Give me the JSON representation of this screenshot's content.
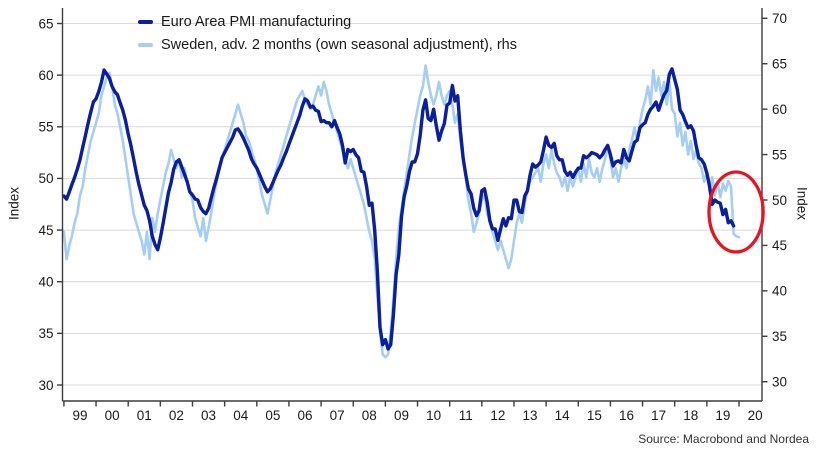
{
  "legend": {
    "items": [
      {
        "label": "Euro Area PMI manufacturing",
        "color": "#0a1f9b"
      },
      {
        "label": "Sweden, adv. 2 months (own seasonal adjustment), rhs",
        "color": "#a6cdf2"
      }
    ]
  },
  "axes": {
    "left_label": "Index",
    "right_label": "Index"
  },
  "source": "Source: Macrobond and Nordea",
  "chart_data": {
    "type": "line",
    "title": "",
    "x_unit": "month",
    "x_start": "1999-01",
    "x_tick_labels": [
      "99",
      "00",
      "01",
      "02",
      "03",
      "04",
      "05",
      "06",
      "07",
      "08",
      "09",
      "10",
      "11",
      "12",
      "13",
      "14",
      "15",
      "16",
      "17",
      "18",
      "19",
      "20"
    ],
    "grid": "horizontal",
    "legend_position": "top-left",
    "left_axis": {
      "label": "Index",
      "min": 30,
      "max": 65,
      "ticks": [
        30,
        35,
        40,
        45,
        50,
        55,
        60,
        65
      ]
    },
    "right_axis": {
      "label": "Index",
      "min": 30,
      "max": 70,
      "ticks": [
        30,
        35,
        40,
        45,
        50,
        55,
        60,
        65,
        70
      ]
    },
    "series": [
      {
        "name": "Sweden, adv. 2 months (own seasonal adjustment), rhs",
        "axis": "right",
        "color": "#a6cdf2",
        "line_width": 2.6,
        "values": [
          46.5,
          43.5,
          45.0,
          46.0,
          47.5,
          48.5,
          50.5,
          51.5,
          53.5,
          55.0,
          56.5,
          57.5,
          58.5,
          59.5,
          61.5,
          62.5,
          63.5,
          64.0,
          62.5,
          60.5,
          59.5,
          58.0,
          56.5,
          54.5,
          52.5,
          50.5,
          48.5,
          47.5,
          46.5,
          45.5,
          44.0,
          46.5,
          43.5,
          48.0,
          46.5,
          48.5,
          50.0,
          51.5,
          53.0,
          54.0,
          55.5,
          54.5,
          53.5,
          54.5,
          52.5,
          53.5,
          52.0,
          51.0,
          50.0,
          48.0,
          47.0,
          46.0,
          48.0,
          45.5,
          47.0,
          48.5,
          50.5,
          52.0,
          53.5,
          54.5,
          55.5,
          56.5,
          57.5,
          58.5,
          59.5,
          60.5,
          59.5,
          58.5,
          57.0,
          56.5,
          55.5,
          54.5,
          53.5,
          52.0,
          50.5,
          49.5,
          48.5,
          50.0,
          51.5,
          53.0,
          54.0,
          55.0,
          56.0,
          57.0,
          58.0,
          59.0,
          60.0,
          61.0,
          61.5,
          62.0,
          61.0,
          60.5,
          60.0,
          60.5,
          61.5,
          62.5,
          61.5,
          63.0,
          62.0,
          60.5,
          59.5,
          58.5,
          57.5,
          56.5,
          55.5,
          54.5,
          53.5,
          54.5,
          53.5,
          52.5,
          51.5,
          50.5,
          49.5,
          48.0,
          46.5,
          45.5,
          43.5,
          39.5,
          35.5,
          33.0,
          32.7,
          33.0,
          35.5,
          39.0,
          43.5,
          47.0,
          49.0,
          51.0,
          53.0,
          55.0,
          57.0,
          58.5,
          60.0,
          61.5,
          62.5,
          64.8,
          63.0,
          61.5,
          60.5,
          61.5,
          63.0,
          61.5,
          60.5,
          61.5,
          62.0,
          60.5,
          58.5,
          59.5,
          56.5,
          54.5,
          52.5,
          50.0,
          48.5,
          46.5,
          47.5,
          48.5,
          50.0,
          50.5,
          48.5,
          47.5,
          46.5,
          45.5,
          44.5,
          45.5,
          44.5,
          43.5,
          42.5,
          43.5,
          45.5,
          47.5,
          48.5,
          47.5,
          49.5,
          51.0,
          52.0,
          52.5,
          53.0,
          53.5,
          52.0,
          54.0,
          55.0,
          53.5,
          55.5,
          54.0,
          53.0,
          52.5,
          51.5,
          52.5,
          51.0,
          52.5,
          51.5,
          52.5,
          53.5,
          52.0,
          54.0,
          52.5,
          54.5,
          53.0,
          52.5,
          53.5,
          52.0,
          53.5,
          54.5,
          56.0,
          54.5,
          52.5,
          53.5,
          52.0,
          53.5,
          54.5,
          53.5,
          55.5,
          56.5,
          58.0,
          56.5,
          58.5,
          60.0,
          61.0,
          62.5,
          60.5,
          64.3,
          62.0,
          63.5,
          61.5,
          63.0,
          60.5,
          63.0,
          60.0,
          59.5,
          57.0,
          58.5,
          56.0,
          57.5,
          55.0,
          56.5,
          54.5,
          55.5,
          54.0,
          53.5,
          52.0,
          53.0,
          51.0,
          52.5,
          50.5,
          52.0,
          50.3,
          51.8,
          51.0,
          52.1,
          51.5,
          46.3,
          46.0,
          45.9
        ]
      },
      {
        "name": "Euro Area PMI manufacturing",
        "axis": "left",
        "color": "#0a1f9b",
        "line_width": 3.4,
        "values": [
          48.3,
          48.0,
          48.7,
          49.4,
          50.1,
          50.9,
          51.8,
          53.0,
          54.1,
          55.3,
          56.4,
          57.4,
          57.7,
          58.4,
          59.3,
          60.5,
          60.1,
          59.7,
          58.9,
          58.4,
          58.1,
          57.3,
          56.6,
          55.6,
          54.3,
          53.2,
          51.9,
          50.6,
          49.4,
          48.4,
          47.4,
          46.9,
          45.9,
          44.4,
          43.6,
          43.1,
          44.2,
          45.6,
          47.1,
          48.6,
          49.6,
          50.9,
          51.6,
          51.8,
          51.1,
          50.4,
          49.7,
          48.7,
          48.4,
          48.0,
          47.9,
          47.2,
          46.8,
          46.6,
          47.1,
          48.1,
          49.1,
          50.0,
          51.0,
          52.0,
          52.5,
          53.0,
          53.5,
          54.0,
          54.7,
          54.8,
          54.4,
          53.9,
          53.3,
          52.7,
          51.9,
          51.4,
          51.0,
          50.4,
          49.8,
          49.2,
          48.7,
          49.0,
          49.6,
          50.2,
          50.8,
          51.3,
          52.0,
          52.6,
          53.3,
          54.0,
          54.7,
          55.4,
          56.1,
          57.0,
          57.7,
          57.5,
          56.9,
          57.0,
          56.6,
          56.5,
          55.5,
          55.6,
          55.4,
          55.4,
          55.0,
          55.6,
          54.9,
          54.3,
          53.2,
          51.5,
          52.8,
          52.6,
          52.8,
          52.3,
          52.0,
          50.7,
          50.6,
          49.2,
          47.4,
          47.6,
          45.0,
          41.1,
          35.6,
          33.9,
          34.4,
          33.5,
          33.9,
          36.8,
          40.7,
          42.6,
          46.3,
          48.2,
          49.3,
          50.7,
          51.6,
          51.6,
          52.4,
          54.2,
          56.6,
          57.6,
          55.8,
          55.6,
          56.7,
          55.1,
          53.7,
          54.6,
          55.3,
          57.1,
          57.3,
          59.0,
          57.5,
          58.0,
          54.6,
          52.0,
          50.4,
          49.0,
          48.5,
          47.1,
          46.4,
          46.9,
          48.8,
          49.0,
          47.7,
          45.9,
          45.1,
          45.1,
          44.0,
          45.1,
          46.1,
          45.4,
          46.2,
          46.1,
          47.9,
          47.9,
          46.8,
          46.7,
          48.3,
          48.8,
          50.3,
          51.4,
          51.1,
          51.3,
          51.6,
          52.7,
          54.0,
          53.2,
          53.0,
          53.4,
          52.2,
          51.8,
          51.8,
          50.7,
          50.3,
          50.6,
          50.1,
          50.6,
          51.0,
          51.0,
          52.2,
          52.0,
          52.2,
          52.5,
          52.4,
          52.3,
          52.0,
          52.3,
          52.8,
          53.2,
          52.3,
          51.2,
          51.6,
          51.7,
          51.5,
          52.8,
          52.0,
          51.7,
          52.6,
          53.5,
          53.7,
          54.9,
          55.2,
          55.4,
          56.2,
          56.7,
          57.0,
          57.4,
          56.6,
          57.4,
          58.1,
          58.5,
          60.1,
          60.6,
          59.6,
          58.6,
          56.6,
          56.2,
          55.5,
          54.9,
          55.1,
          54.6,
          53.2,
          52.0,
          51.8,
          51.4,
          50.5,
          49.3,
          47.5,
          47.9,
          47.7,
          47.6,
          46.5,
          47.0,
          45.7,
          45.9,
          45.4
        ]
      }
    ],
    "annotation_ellipse": {
      "center_month": 250.9,
      "center_value_left": 46.75,
      "radius_months": 10.1,
      "radius_values": 3.87,
      "color": "#e8141e",
      "stroke_width": 3.3
    }
  }
}
